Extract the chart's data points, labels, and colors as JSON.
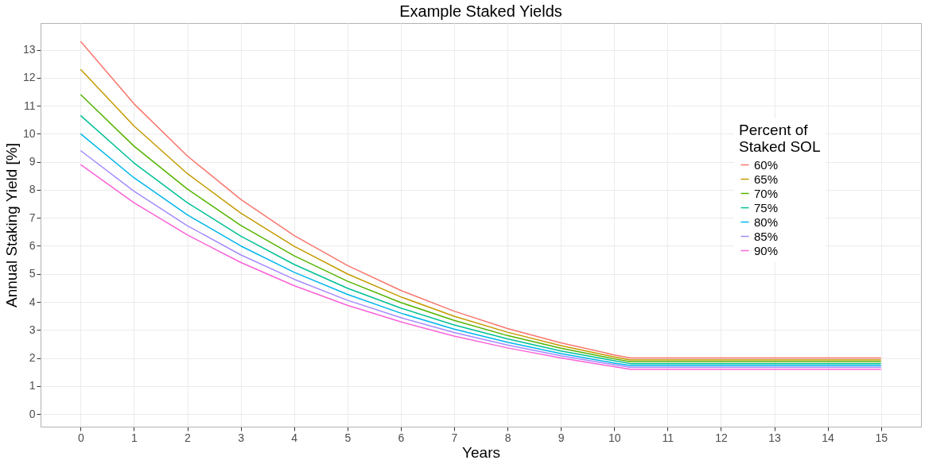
{
  "chart_data": {
    "type": "line",
    "title": "Example Staked Yields",
    "xlabel": "Years",
    "ylabel": "Annual Staking Yield [%]",
    "legend_title": "Percent of\nStaked SOL",
    "x": [
      0,
      1,
      2,
      3,
      4,
      5,
      6,
      7,
      8,
      9,
      10,
      10.3,
      15
    ],
    "series": [
      {
        "name": "60%",
        "color": "#f8766d",
        "values": [
          13.3,
          11.07,
          9.21,
          7.66,
          6.37,
          5.3,
          4.41,
          3.67,
          3.05,
          2.54,
          2.11,
          2.0,
          2.0
        ]
      },
      {
        "name": "65%",
        "color": "#c49a00",
        "values": [
          12.3,
          10.28,
          8.58,
          7.17,
          5.99,
          5.0,
          4.18,
          3.49,
          2.92,
          2.44,
          2.04,
          1.93,
          1.93
        ]
      },
      {
        "name": "70%",
        "color": "#53b400",
        "values": [
          11.4,
          9.56,
          8.03,
          6.73,
          5.65,
          4.74,
          3.98,
          3.34,
          2.8,
          2.35,
          1.97,
          1.87,
          1.87
        ]
      },
      {
        "name": "75%",
        "color": "#00c094",
        "values": [
          10.65,
          8.96,
          7.54,
          6.35,
          5.34,
          4.49,
          3.78,
          3.18,
          2.68,
          2.25,
          1.9,
          1.8,
          1.8
        ]
      },
      {
        "name": "80%",
        "color": "#00b6eb",
        "values": [
          10.0,
          8.43,
          7.11,
          6.0,
          5.06,
          4.27,
          3.6,
          3.03,
          2.56,
          2.16,
          1.82,
          1.73,
          1.73
        ]
      },
      {
        "name": "85%",
        "color": "#a58aff",
        "values": [
          9.4,
          7.95,
          6.72,
          5.68,
          4.81,
          4.06,
          3.44,
          2.91,
          2.46,
          2.08,
          1.76,
          1.67,
          1.67
        ]
      },
      {
        "name": "90%",
        "color": "#fb61d7",
        "values": [
          8.9,
          7.54,
          6.39,
          5.41,
          4.58,
          3.88,
          3.29,
          2.78,
          2.36,
          2.0,
          1.69,
          1.6,
          1.6
        ]
      }
    ],
    "xlim": [
      -0.75,
      15.75
    ],
    "xticks": [
      0,
      1,
      2,
      3,
      4,
      5,
      6,
      7,
      8,
      9,
      10,
      11,
      12,
      13,
      14,
      15
    ],
    "ylim": [
      -0.45,
      13.95
    ],
    "yticks": [
      0,
      1,
      2,
      3,
      4,
      5,
      6,
      7,
      8,
      9,
      10,
      11,
      12,
      13
    ],
    "grid": true,
    "legend": "top right",
    "line_style": "solid",
    "marker": "none"
  }
}
